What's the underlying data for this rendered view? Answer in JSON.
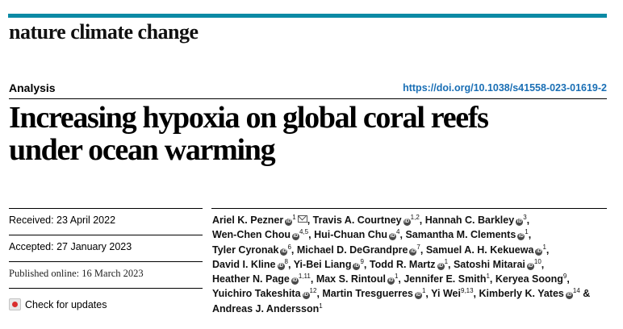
{
  "journal": {
    "name": "nature climate change"
  },
  "article": {
    "type": "Analysis",
    "doi": "https://doi.org/10.1038/s41558-023-01619-2",
    "title_line1": "Increasing hypoxia on global coral reefs",
    "title_line2": "under ocean warming"
  },
  "dates": {
    "received": "Received: 23 April 2022",
    "accepted": "Accepted: 27 January 2023",
    "published": "Published online: 16 March 2023"
  },
  "check_updates": {
    "label": "Check for updates"
  },
  "authors": [
    {
      "name": "Ariel K. Pezner",
      "aff": "1",
      "sep": ", "
    },
    {
      "name": "Travis A. Courtney",
      "aff": "1,2",
      "sep": ", "
    },
    {
      "name": "Hannah C. Barkley",
      "aff": "3",
      "sep": ", "
    },
    {
      "name": "Wen-Chen Chou",
      "aff": "4,5",
      "sep": ", "
    },
    {
      "name": "Hui-Chuan Chu",
      "aff": "4",
      "sep": ", "
    },
    {
      "name": "Samantha M. Clements",
      "aff": "1",
      "sep": ", "
    },
    {
      "name": "Tyler Cyronak",
      "aff": "6",
      "sep": ", "
    },
    {
      "name": "Michael D. DeGrandpre",
      "aff": "7",
      "sep": ", "
    },
    {
      "name": "Samuel A. H. Kekuewa",
      "aff": "1",
      "sep": ", "
    },
    {
      "name": "David I. Kline",
      "aff": "8",
      "sep": ", "
    },
    {
      "name": "Yi-Bei Liang",
      "aff": "9",
      "sep": ", "
    },
    {
      "name": "Todd R. Martz",
      "aff": "1",
      "sep": ", "
    },
    {
      "name": "Satoshi Mitarai",
      "aff": "10",
      "sep": ", "
    },
    {
      "name": "Heather N. Page",
      "aff": "1,11",
      "sep": ", "
    },
    {
      "name": "Max S. Rintoul",
      "aff": "1",
      "sep": ", "
    },
    {
      "name": "Jennifer E. Smith",
      "aff": "1",
      "sep": ", "
    },
    {
      "name": "Keryea Soong",
      "aff": "9",
      "sep": ", "
    },
    {
      "name": "Yuichiro Takeshita",
      "aff": "12",
      "sep": ", "
    },
    {
      "name": "Martin Tresguerres",
      "aff": "1",
      "sep": ", "
    },
    {
      "name": "Yi Wei",
      "aff": "9,13",
      "sep": ", "
    },
    {
      "name": "Kimberly K. Yates",
      "aff": "14",
      "sep": " & "
    },
    {
      "name": "Andreas J. Andersson",
      "aff": "1",
      "sep": ""
    }
  ]
}
